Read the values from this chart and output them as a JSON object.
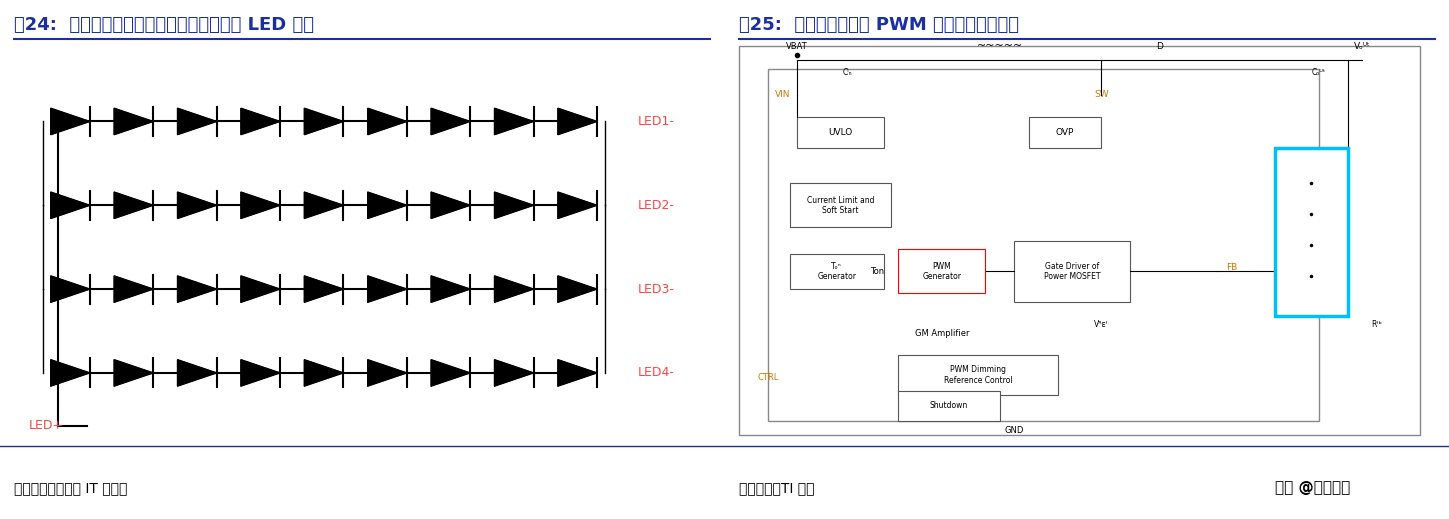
{
  "title1": "图24:  背光显示芯片的核心功能就是给白光 LED 供电",
  "title2": "图25:  背光显示芯片的 PWM 模块功能相对单一",
  "source1": "资料来源：欧龙会 IT 技术网",
  "source2": "资料来源：TI 官网",
  "watermark": "头条 @远瞻智库",
  "title_color": "#1B2FA0",
  "title_fontsize": 13,
  "source_fontsize": 10,
  "background_color": "#FFFFFF",
  "divider_color": "#1B2FA0",
  "led_labels": [
    "LED1-",
    "LED2-",
    "LED3-",
    "LED4-"
  ],
  "led_label_color": "#FF4444",
  "led_plus_label": "LED+",
  "led_plus_color": "#FF4444",
  "num_rows": 4,
  "num_cols": 9,
  "circuit_bg": "#FFFFFF",
  "red_box_color": "#FF0000",
  "cyan_box_color": "#00BFFF"
}
